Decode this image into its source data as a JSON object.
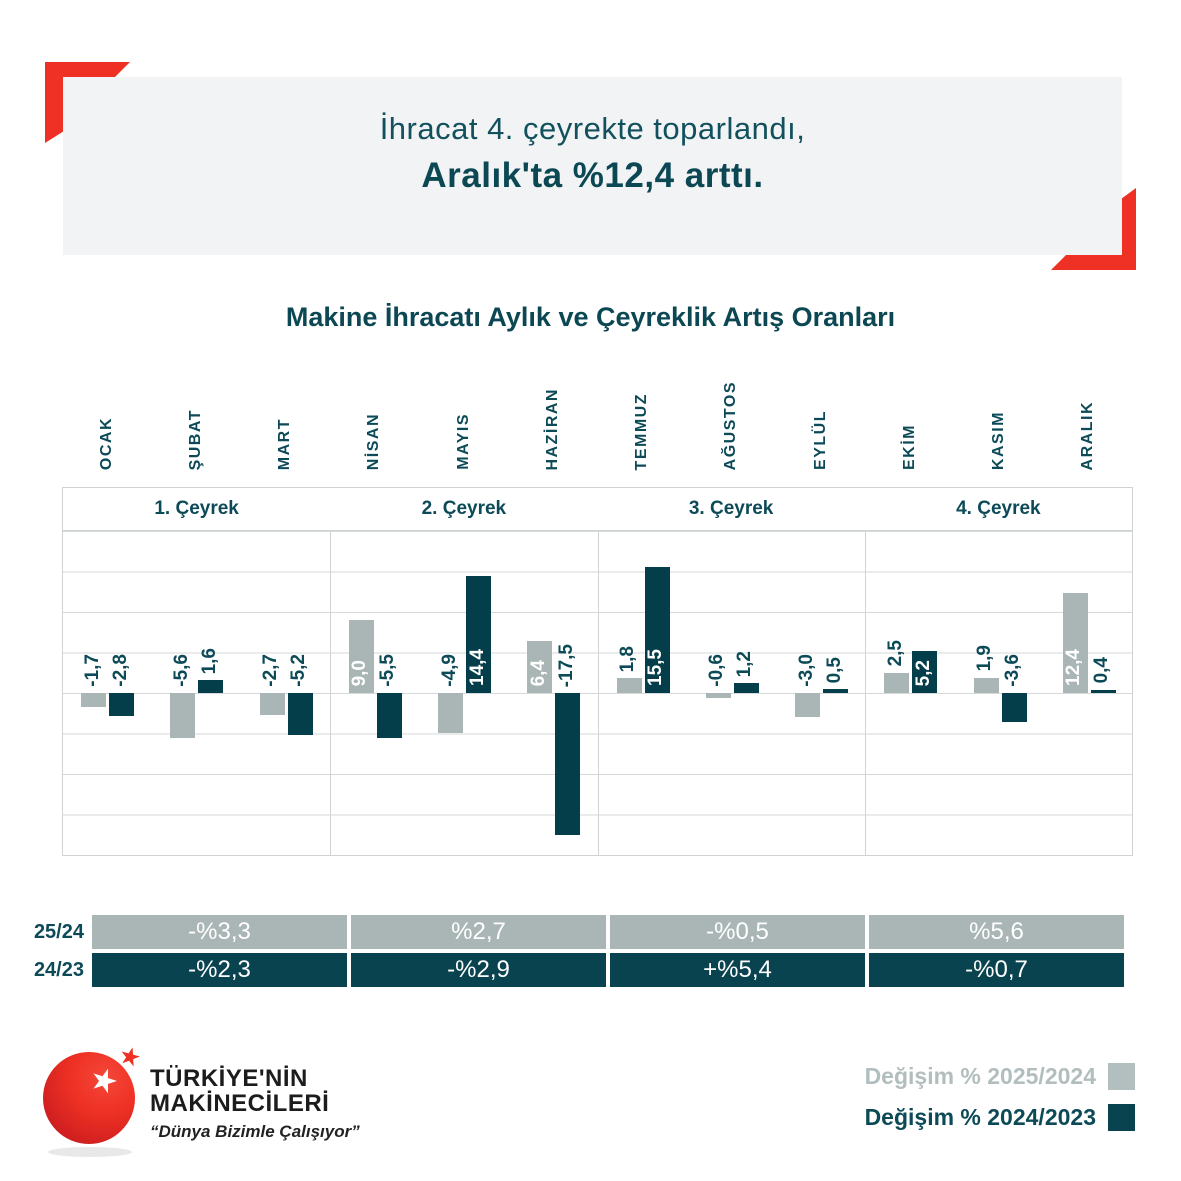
{
  "banner": {
    "line1": "İhracat 4. çeyrekte toparlandı,",
    "line2": "Aralık'ta %12,4 arttı."
  },
  "chart": {
    "title": "Makine İhracatı Aylık ve Çeyreklik Artış Oranları"
  },
  "chart_data": {
    "type": "bar",
    "title": "Makine İhracatı Aylık ve Çeyreklik Artış Oranları",
    "categories": [
      "OCAK",
      "ŞUBAT",
      "MART",
      "NİSAN",
      "MAYIS",
      "HAZİRAN",
      "TEMMUZ",
      "AĞUSTOS",
      "EYLÜL",
      "EKİM",
      "KASIM",
      "ARALIK"
    ],
    "quarters": [
      "1. Çeyrek",
      "2. Çeyrek",
      "3. Çeyrek",
      "4. Çeyrek"
    ],
    "series": [
      {
        "name": "Değişim % 2025/2024",
        "short": "2025-2024",
        "color": "#a9b6b5",
        "values": [
          -1.7,
          -5.6,
          -2.7,
          9.0,
          -4.9,
          6.4,
          1.8,
          -0.6,
          -3.0,
          2.5,
          1.9,
          12.4
        ],
        "labels": [
          "-1,7",
          "-5,6",
          "-2,7",
          "9,0",
          "-4,9",
          "6,4",
          "1,8",
          "-0,6",
          "-3,0",
          "2,5",
          "1,9",
          "12,4"
        ]
      },
      {
        "name": "Değişim % 2024/2023",
        "short": "2024-2023",
        "color": "#053e4b",
        "values": [
          -2.8,
          1.6,
          -5.2,
          -5.5,
          14.4,
          -17.5,
          15.5,
          1.2,
          0.5,
          5.2,
          -3.6,
          0.4
        ],
        "labels": [
          "-2,8",
          "1,6",
          "-5,2",
          "-5,5",
          "14,4",
          "-17,5",
          "15,5",
          "1,2",
          "0,5",
          "5,2",
          "-3,6",
          "0,4"
        ]
      }
    ],
    "xlabel": "",
    "ylabel": "",
    "ylim": [
      -20,
      20
    ],
    "gridline_step": 5,
    "grid": true,
    "legend_position": "bottom-right",
    "quarterly_summary": {
      "2025_2024": [
        "-%3,3",
        "%2,7",
        "-%0,5",
        "%5,6"
      ],
      "2024_2023": [
        "-%2,3",
        "-%2,9",
        "+%5,4",
        "-%0,7"
      ]
    }
  },
  "summary": {
    "rows": [
      {
        "label": "25/24",
        "color": "#a9b6b5",
        "values": [
          "-%3,3",
          "%2,7",
          "-%0,5",
          "%5,6"
        ]
      },
      {
        "label": "24/23",
        "color": "#0a4350",
        "values": [
          "-%2,3",
          "-%2,9",
          "+%5,4",
          "-%0,7"
        ]
      }
    ]
  },
  "legend": {
    "items": [
      {
        "label": "Değişim % 2025/2024",
        "color": "#b3bfbf"
      },
      {
        "label": "Değişim % 2024/2023",
        "color": "#0a4350"
      }
    ]
  },
  "logo": {
    "line1": "TÜRKİYE'NİN",
    "line2": "MAKİNECİLERİ",
    "tagline": "“Dünya Bizimle Çalışıyor”"
  },
  "colors": {
    "accent_red": "#ee3124",
    "dark_teal": "#053e4b",
    "text_teal": "#0d4a57",
    "light_gray_bar": "#a9b6b5",
    "banner_bg": "#f2f3f5",
    "gridline": "#d6d9da"
  }
}
